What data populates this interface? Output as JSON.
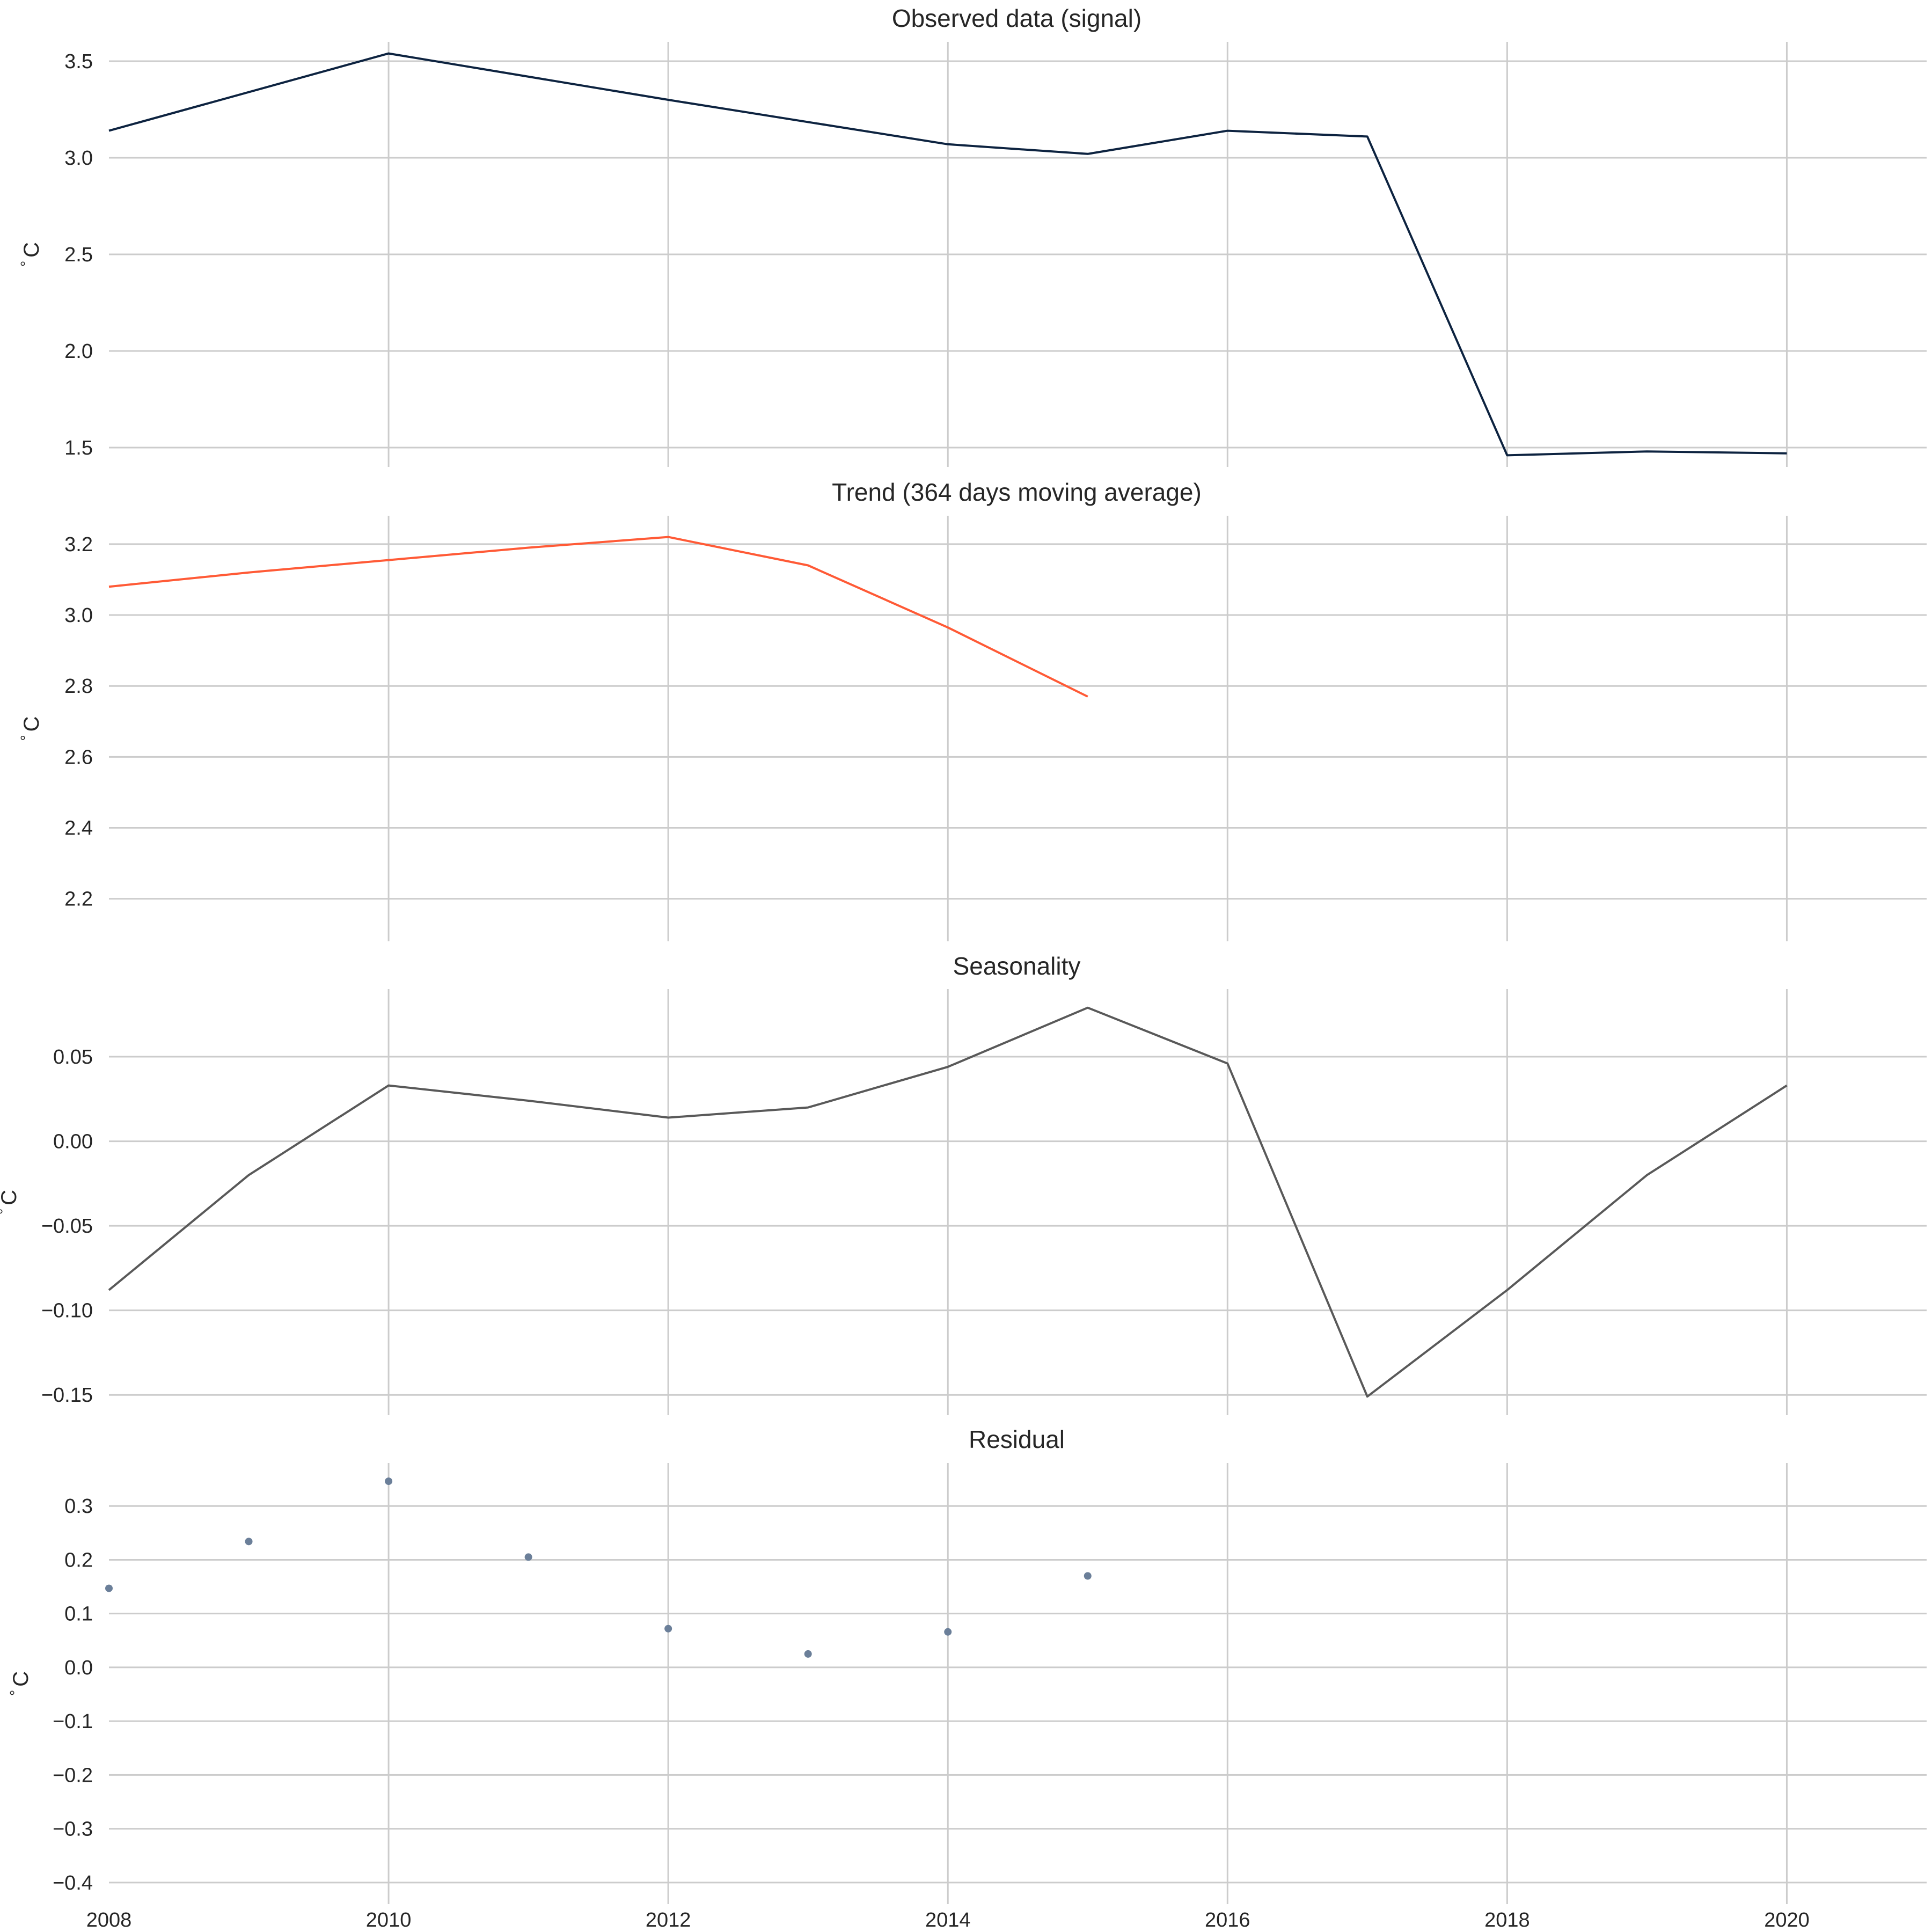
{
  "chart_data": [
    {
      "type": "line",
      "title": "Observed data (signal)",
      "ylabel": "$^\\circ$C",
      "x": [
        2008,
        2010,
        2012,
        2014,
        2015,
        2016,
        2017,
        2018,
        2019,
        2020
      ],
      "series": [
        {
          "values": [
            3.14,
            3.54,
            3.3,
            3.07,
            3.02,
            3.14,
            3.11,
            1.46,
            1.48,
            1.47
          ],
          "color": "#0d2340"
        }
      ],
      "yticks": [
        1.5,
        2.0,
        2.5,
        3.0,
        3.5
      ],
      "ytick_labels": [
        "1.5",
        "2.0",
        "2.5",
        "3.0",
        "3.5"
      ],
      "ylim": [
        1.4,
        3.6
      ],
      "xlim": [
        2008,
        2021
      ],
      "grid": true
    },
    {
      "type": "line",
      "title": "Trend (364 days moving average)",
      "ylabel": "$^\\circ$C",
      "x": [
        2008,
        2009,
        2010,
        2011,
        2012,
        2013,
        2014,
        2015
      ],
      "series": [
        {
          "values": [
            3.08,
            3.12,
            3.155,
            3.19,
            3.22,
            3.14,
            2.965,
            2.77
          ],
          "color": "#ff5a36"
        }
      ],
      "yticks": [
        2.2,
        2.4,
        2.6,
        2.8,
        3.0,
        3.2
      ],
      "ytick_labels": [
        "2.2",
        "2.4",
        "2.6",
        "2.8",
        "3.0",
        "3.2"
      ],
      "ylim": [
        2.08,
        3.28
      ],
      "xlim": [
        2008,
        2021
      ],
      "grid": true
    },
    {
      "type": "line",
      "title": "Seasonality",
      "ylabel": "$^\\circ$C",
      "x": [
        2008,
        2009,
        2010,
        2011,
        2012,
        2013,
        2014,
        2015,
        2016,
        2017,
        2018,
        2019,
        2020
      ],
      "series": [
        {
          "values": [
            -0.088,
            -0.02,
            0.033,
            0.024,
            0.014,
            0.02,
            0.044,
            0.079,
            0.046,
            -0.151,
            -0.088,
            -0.02,
            0.033
          ],
          "color": "#595959"
        }
      ],
      "yticks": [
        -0.15,
        -0.1,
        -0.05,
        0.0,
        0.05
      ],
      "ytick_labels": [
        "−0.15",
        "−0.10",
        "−0.05",
        "0.00",
        "0.05"
      ],
      "ylim": [
        -0.162,
        0.09
      ],
      "xlim": [
        2008,
        2021
      ],
      "grid": true
    },
    {
      "type": "scatter",
      "title": "Residual",
      "ylabel": "$^\\circ$C",
      "xlabel": "",
      "x": [
        2008,
        2009,
        2010,
        2011,
        2012,
        2013,
        2014,
        2015
      ],
      "series": [
        {
          "values": [
            0.147,
            0.234,
            0.346,
            0.205,
            0.072,
            0.025,
            0.066,
            0.17
          ],
          "color": "#6b7f99"
        }
      ],
      "yticks": [
        -0.4,
        -0.3,
        -0.2,
        -0.1,
        0.0,
        0.1,
        0.2,
        0.3
      ],
      "ytick_labels": [
        "−0.4",
        "−0.3",
        "−0.2",
        "−0.1",
        "0.0",
        "0.1",
        "0.2",
        "0.3"
      ],
      "xticks": [
        2008,
        2010,
        2012,
        2014,
        2016,
        2018,
        2020
      ],
      "xtick_labels": [
        "2008",
        "2010",
        "2012",
        "2014",
        "2016",
        "2018",
        "2020"
      ],
      "ylim": [
        -0.44,
        0.38
      ],
      "xlim": [
        2008,
        2021
      ],
      "grid": true
    }
  ],
  "x_gridlines": [
    2010,
    2012,
    2014,
    2016,
    2018,
    2020
  ]
}
